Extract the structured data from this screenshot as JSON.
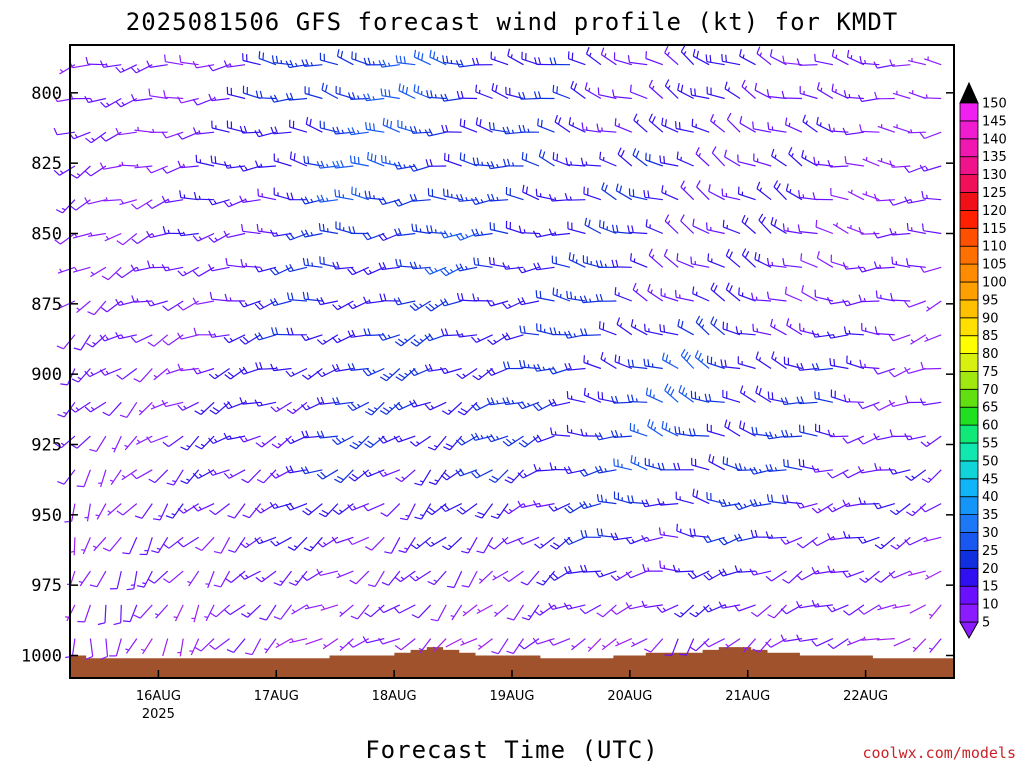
{
  "chart_data": {
    "type": "wind-barb-time-height",
    "title": "2025081506 GFS forecast wind profile (kt) for KMDT",
    "xlabel": "Forecast Time (UTC)",
    "ylabel": "",
    "y_ticks": [
      800,
      825,
      850,
      875,
      900,
      925,
      950,
      975,
      1000
    ],
    "ylim": [
      1008,
      783
    ],
    "x_ticks": [
      {
        "label": "16AUG",
        "sublabel": "2025",
        "hour": 18
      },
      {
        "label": "17AUG",
        "sublabel": "",
        "hour": 42
      },
      {
        "label": "18AUG",
        "sublabel": "",
        "hour": 66
      },
      {
        "label": "19AUG",
        "sublabel": "",
        "hour": 90
      },
      {
        "label": "20AUG",
        "sublabel": "",
        "hour": 114
      },
      {
        "label": "21AUG",
        "sublabel": "",
        "hour": 138
      },
      {
        "label": "22AUG",
        "sublabel": "",
        "hour": 162
      }
    ],
    "xlim": [
      0,
      180
    ],
    "colorbar": {
      "levels": [
        5,
        10,
        15,
        20,
        25,
        30,
        35,
        40,
        45,
        50,
        55,
        60,
        65,
        70,
        75,
        80,
        85,
        90,
        95,
        100,
        105,
        110,
        115,
        120,
        125,
        130,
        135,
        140,
        145,
        150
      ],
      "colors": [
        "#8a1cff",
        "#6a10ff",
        "#3010f0",
        "#1030e0",
        "#1858f0",
        "#1c78f4",
        "#1496f8",
        "#10b4f8",
        "#10d4d8",
        "#10e8b0",
        "#10e878",
        "#20e020",
        "#60e010",
        "#a0e810",
        "#d8f010",
        "#ffff00",
        "#ffe000",
        "#ffc000",
        "#ffa000",
        "#ff8c00",
        "#ff7000",
        "#ff5000",
        "#ff2000",
        "#f01018",
        "#f0105a",
        "#f0148c",
        "#f018b0",
        "#f01cd0",
        "#f020f0",
        "#ff40ff"
      ],
      "under_color": "#a020f0",
      "over_color": "#000000"
    },
    "terrain_color": "#a0522d",
    "surface_pressure": [
      1000,
      1000,
      1001,
      1001,
      1001,
      1001,
      1001,
      1001,
      1001,
      1001,
      1001,
      1001,
      1001,
      1001,
      1001,
      1001,
      1001,
      1001,
      1001,
      1001,
      1001,
      1001,
      1001,
      1001,
      1001,
      1001,
      1001,
      1001,
      1001,
      1001,
      1001,
      1001,
      1000,
      1000,
      1000,
      1000,
      1000,
      1000,
      1000,
      1000,
      999,
      999,
      998,
      998,
      997,
      997,
      998,
      998,
      999,
      999,
      1000,
      1000,
      1000,
      1000,
      1000,
      1000,
      1000,
      1000,
      1001,
      1001,
      1001,
      1001,
      1001,
      1001,
      1001,
      1001,
      1001,
      1000,
      1000,
      1000,
      1000,
      999,
      999,
      999,
      999,
      999,
      999,
      999,
      998,
      998,
      997,
      997,
      997,
      997,
      998,
      998,
      999,
      999,
      999,
      999,
      1000,
      1000,
      1000,
      1000,
      1000,
      1000,
      1000,
      1000,
      1000,
      1001,
      1001,
      1001,
      1001,
      1001,
      1001,
      1001,
      1001,
      1001,
      1001
    ],
    "wind_levels": [
      1000,
      975,
      950,
      925,
      900,
      875,
      850,
      825,
      800
    ],
    "wind_times": [
      0,
      18,
      36,
      54,
      72,
      90,
      108,
      126,
      144,
      162,
      180
    ],
    "wind_direction": [
      [
        180,
        200,
        220,
        250,
        240,
        230,
        240,
        200,
        240,
        260,
        230
      ],
      [
        190,
        210,
        220,
        240,
        220,
        220,
        250,
        260,
        240,
        250,
        230
      ],
      [
        200,
        220,
        230,
        240,
        220,
        230,
        260,
        280,
        260,
        250,
        240
      ],
      [
        210,
        230,
        240,
        250,
        230,
        240,
        270,
        290,
        280,
        260,
        240
      ],
      [
        220,
        240,
        250,
        250,
        240,
        250,
        280,
        300,
        290,
        270,
        250
      ],
      [
        230,
        250,
        260,
        260,
        250,
        260,
        280,
        300,
        290,
        270,
        250
      ],
      [
        240,
        250,
        260,
        270,
        260,
        270,
        280,
        300,
        300,
        280,
        260
      ],
      [
        240,
        260,
        270,
        280,
        270,
        280,
        290,
        300,
        300,
        280,
        260
      ],
      [
        250,
        260,
        270,
        280,
        280,
        280,
        290,
        300,
        290,
        280,
        270
      ]
    ],
    "wind_speed": [
      [
        5,
        5,
        5,
        5,
        5,
        5,
        5,
        5,
        10,
        5,
        5
      ],
      [
        5,
        10,
        10,
        10,
        10,
        10,
        15,
        15,
        15,
        10,
        5
      ],
      [
        10,
        10,
        15,
        15,
        15,
        15,
        20,
        20,
        20,
        15,
        10
      ],
      [
        10,
        10,
        15,
        20,
        20,
        20,
        20,
        25,
        20,
        15,
        10
      ],
      [
        10,
        10,
        15,
        20,
        20,
        20,
        20,
        25,
        20,
        15,
        10
      ],
      [
        10,
        10,
        15,
        20,
        20,
        20,
        20,
        15,
        15,
        10,
        10
      ],
      [
        10,
        10,
        15,
        20,
        25,
        20,
        20,
        15,
        15,
        10,
        10
      ],
      [
        10,
        10,
        15,
        25,
        25,
        20,
        20,
        15,
        15,
        10,
        10
      ],
      [
        10,
        10,
        15,
        25,
        25,
        20,
        15,
        15,
        15,
        10,
        10
      ]
    ]
  },
  "credit": "coolwx.com/models"
}
